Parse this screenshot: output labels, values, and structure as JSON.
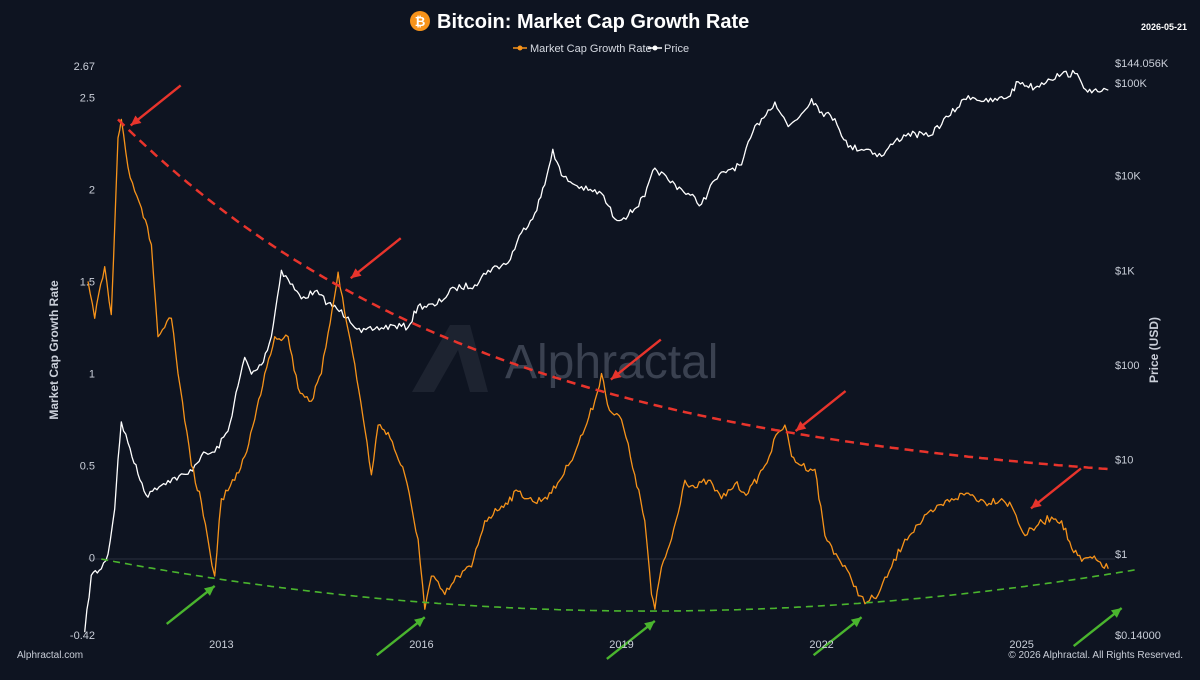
{
  "date_stamp": "2026-05-21",
  "footer_left": "Alphractal.com",
  "footer_right": "© 2026 Alphractal. All Rights Reserved.",
  "watermark": "Alphractal",
  "colors": {
    "background": "#0e1421",
    "growth_rate": "#f7931a",
    "price": "#ffffff",
    "resistance": "#e8342c",
    "support": "#4ab52e",
    "bitcoin_logo": "#f7931a"
  },
  "chart_data": {
    "type": "line",
    "title": "Bitcoin: Market Cap Growth Rate",
    "legend": {
      "placement": "top-center",
      "entries": [
        "Market Cap Growth Rate",
        "Price"
      ]
    },
    "xaxis": {
      "ticks": [
        "2013",
        "2016",
        "2019",
        "2022",
        "2025"
      ],
      "range": [
        2011.0,
        2026.4
      ]
    },
    "yaxis_left": {
      "label": "Market Cap Growth Rate",
      "ticks": [
        "2.67",
        "2.5",
        "2",
        "1.5",
        "1",
        "0.5",
        "0",
        "-0.42"
      ],
      "range": [
        -0.42,
        2.67
      ]
    },
    "yaxis_right": {
      "label": "Price (USD)",
      "scale": "log",
      "ticks": [
        "$144.056K",
        "$100K",
        "$10K",
        "$1K",
        "$100",
        "$10",
        "$1",
        "$0.14000"
      ],
      "range": [
        0.14,
        144056
      ]
    },
    "grid": false,
    "series": [
      {
        "name": "Market Cap Growth Rate",
        "axis": "left",
        "points": [
          [
            2011.0,
            1.5
          ],
          [
            2011.1,
            1.3
          ],
          [
            2011.25,
            1.58
          ],
          [
            2011.35,
            1.32
          ],
          [
            2011.45,
            2.28
          ],
          [
            2011.5,
            2.38
          ],
          [
            2011.6,
            2.12
          ],
          [
            2011.8,
            1.9
          ],
          [
            2011.95,
            1.7
          ],
          [
            2012.05,
            1.2
          ],
          [
            2012.25,
            1.3
          ],
          [
            2012.35,
            1.0
          ],
          [
            2012.55,
            0.5
          ],
          [
            2012.7,
            0.3
          ],
          [
            2012.82,
            0.05
          ],
          [
            2012.9,
            -0.1
          ],
          [
            2013.0,
            0.32
          ],
          [
            2013.2,
            0.42
          ],
          [
            2013.35,
            0.55
          ],
          [
            2013.5,
            0.75
          ],
          [
            2013.65,
            1.0
          ],
          [
            2013.8,
            1.2
          ],
          [
            2014.0,
            1.2
          ],
          [
            2014.15,
            0.92
          ],
          [
            2014.35,
            0.85
          ],
          [
            2014.5,
            1.0
          ],
          [
            2014.6,
            1.22
          ],
          [
            2014.75,
            1.55
          ],
          [
            2014.85,
            1.33
          ],
          [
            2015.0,
            1.05
          ],
          [
            2015.15,
            0.7
          ],
          [
            2015.25,
            0.45
          ],
          [
            2015.35,
            0.72
          ],
          [
            2015.5,
            0.68
          ],
          [
            2015.75,
            0.45
          ],
          [
            2015.95,
            0.1
          ],
          [
            2016.05,
            -0.28
          ],
          [
            2016.15,
            -0.1
          ],
          [
            2016.35,
            -0.2
          ],
          [
            2016.55,
            -0.1
          ],
          [
            2016.75,
            -0.05
          ],
          [
            2016.95,
            0.2
          ],
          [
            2017.2,
            0.28
          ],
          [
            2017.45,
            0.36
          ],
          [
            2017.7,
            0.3
          ],
          [
            2017.95,
            0.35
          ],
          [
            2018.2,
            0.5
          ],
          [
            2018.45,
            0.7
          ],
          [
            2018.6,
            0.85
          ],
          [
            2018.7,
            1.0
          ],
          [
            2018.82,
            0.8
          ],
          [
            2019.0,
            0.75
          ],
          [
            2019.2,
            0.45
          ],
          [
            2019.35,
            0.2
          ],
          [
            2019.45,
            -0.2
          ],
          [
            2019.5,
            -0.28
          ],
          [
            2019.6,
            -0.05
          ],
          [
            2019.75,
            0.1
          ],
          [
            2019.95,
            0.42
          ],
          [
            2020.1,
            0.38
          ],
          [
            2020.3,
            0.42
          ],
          [
            2020.5,
            0.32
          ],
          [
            2020.7,
            0.4
          ],
          [
            2020.9,
            0.35
          ],
          [
            2021.15,
            0.5
          ],
          [
            2021.35,
            0.68
          ],
          [
            2021.45,
            0.72
          ],
          [
            2021.55,
            0.55
          ],
          [
            2021.7,
            0.5
          ],
          [
            2021.9,
            0.48
          ],
          [
            2022.05,
            0.12
          ],
          [
            2022.25,
            0.0
          ],
          [
            2022.45,
            -0.12
          ],
          [
            2022.65,
            -0.25
          ],
          [
            2022.85,
            -0.2
          ],
          [
            2023.05,
            -0.05
          ],
          [
            2023.25,
            0.1
          ],
          [
            2023.45,
            0.18
          ],
          [
            2023.7,
            0.26
          ],
          [
            2023.95,
            0.32
          ],
          [
            2024.2,
            0.35
          ],
          [
            2024.45,
            0.3
          ],
          [
            2024.7,
            0.32
          ],
          [
            2024.85,
            0.28
          ],
          [
            2025.05,
            0.12
          ],
          [
            2025.25,
            0.18
          ],
          [
            2025.45,
            0.22
          ],
          [
            2025.6,
            0.2
          ],
          [
            2025.75,
            0.05
          ],
          [
            2025.9,
            -0.02
          ],
          [
            2026.0,
            0.0
          ],
          [
            2026.15,
            -0.02
          ],
          [
            2026.3,
            -0.06
          ]
        ]
      },
      {
        "name": "Price",
        "axis": "right",
        "points": [
          [
            2010.95,
            0.15
          ],
          [
            2011.05,
            0.6
          ],
          [
            2011.2,
            0.7
          ],
          [
            2011.3,
            1.0
          ],
          [
            2011.4,
            3.0
          ],
          [
            2011.45,
            10.0
          ],
          [
            2011.5,
            25.0
          ],
          [
            2011.6,
            15.0
          ],
          [
            2011.75,
            7.0
          ],
          [
            2011.9,
            4.0
          ],
          [
            2012.0,
            5.0
          ],
          [
            2012.2,
            6.0
          ],
          [
            2012.5,
            7.0
          ],
          [
            2012.7,
            11.0
          ],
          [
            2012.9,
            12.0
          ],
          [
            2013.1,
            20.0
          ],
          [
            2013.25,
            60.0
          ],
          [
            2013.35,
            120.0
          ],
          [
            2013.45,
            80.0
          ],
          [
            2013.6,
            100.0
          ],
          [
            2013.75,
            200.0
          ],
          [
            2013.9,
            1000.0
          ],
          [
            2014.0,
            800.0
          ],
          [
            2014.2,
            500.0
          ],
          [
            2014.4,
            600.0
          ],
          [
            2014.6,
            450.0
          ],
          [
            2014.9,
            320.0
          ],
          [
            2015.1,
            220.0
          ],
          [
            2015.3,
            240.0
          ],
          [
            2015.6,
            260.0
          ],
          [
            2015.8,
            250.0
          ],
          [
            2015.95,
            420.0
          ],
          [
            2016.2,
            420.0
          ],
          [
            2016.5,
            650.0
          ],
          [
            2016.8,
            700.0
          ],
          [
            2017.0,
            1000.0
          ],
          [
            2017.3,
            1200.0
          ],
          [
            2017.5,
            2500.0
          ],
          [
            2017.7,
            4000.0
          ],
          [
            2017.85,
            8000.0
          ],
          [
            2017.97,
            19000.0
          ],
          [
            2018.1,
            10000.0
          ],
          [
            2018.3,
            8000.0
          ],
          [
            2018.5,
            7000.0
          ],
          [
            2018.7,
            6500.0
          ],
          [
            2018.9,
            3500.0
          ],
          [
            2019.1,
            3800.0
          ],
          [
            2019.35,
            6000.0
          ],
          [
            2019.5,
            12000.0
          ],
          [
            2019.7,
            9000.0
          ],
          [
            2019.9,
            7200.0
          ],
          [
            2020.2,
            5000.0
          ],
          [
            2020.4,
            9000.0
          ],
          [
            2020.6,
            11500.0
          ],
          [
            2020.8,
            13000.0
          ],
          [
            2020.97,
            29000.0
          ],
          [
            2021.1,
            40000.0
          ],
          [
            2021.3,
            60000.0
          ],
          [
            2021.5,
            33000.0
          ],
          [
            2021.7,
            45000.0
          ],
          [
            2021.85,
            65000.0
          ],
          [
            2022.0,
            47000.0
          ],
          [
            2022.2,
            40000.0
          ],
          [
            2022.4,
            20000.0
          ],
          [
            2022.7,
            19000.0
          ],
          [
            2022.9,
            16000.0
          ],
          [
            2023.1,
            23000.0
          ],
          [
            2023.3,
            28000.0
          ],
          [
            2023.6,
            26000.0
          ],
          [
            2023.9,
            42000.0
          ],
          [
            2024.2,
            70000.0
          ],
          [
            2024.5,
            60000.0
          ],
          [
            2024.8,
            68000.0
          ],
          [
            2024.95,
            98000.0
          ],
          [
            2025.2,
            85000.0
          ],
          [
            2025.4,
            105000.0
          ],
          [
            2025.6,
            118000.0
          ],
          [
            2025.8,
            120000.0
          ],
          [
            2025.9,
            95000.0
          ],
          [
            2026.05,
            75000.0
          ],
          [
            2026.2,
            78000.0
          ],
          [
            2026.3,
            80000.0
          ]
        ]
      }
    ]
  }
}
